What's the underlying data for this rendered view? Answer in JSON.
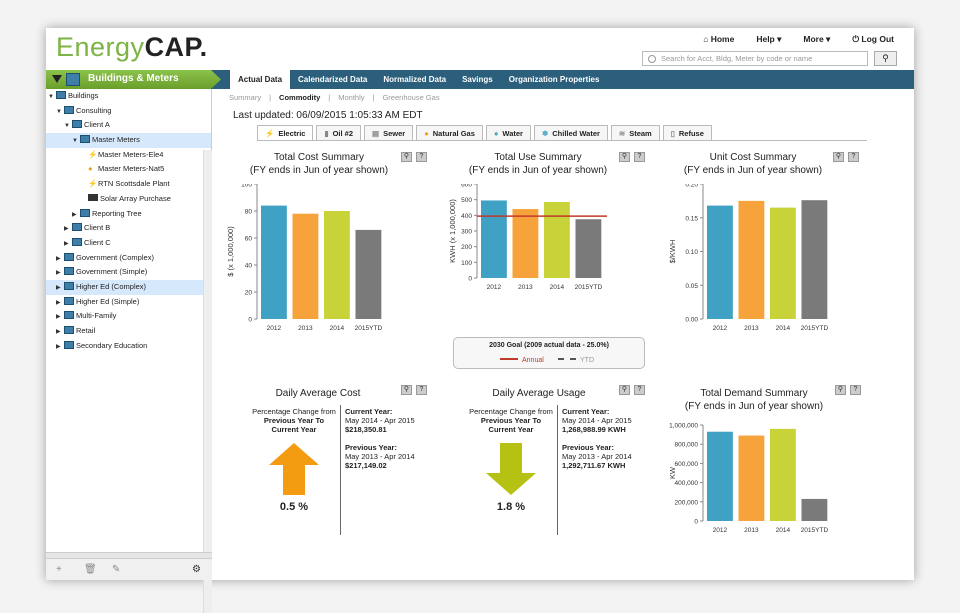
{
  "header": {
    "logo_energy": "Energy",
    "logo_cap": "CAP.",
    "nav": [
      "Home",
      "Help ▾",
      "More ▾",
      "Log Out"
    ],
    "search_placeholder": "Search for Acct, Bldg, Meter by code or name"
  },
  "sidebar": {
    "title": "Buildings & Meters",
    "tree": [
      {
        "label": "Buildings",
        "indent": 0,
        "exp": "▼",
        "icon": "building"
      },
      {
        "label": "Consulting",
        "indent": 1,
        "exp": "▼",
        "icon": "building"
      },
      {
        "label": "Client A",
        "indent": 2,
        "exp": "▼",
        "icon": "building"
      },
      {
        "label": "Master Meters",
        "indent": 3,
        "exp": "▼",
        "icon": "building",
        "selected": true
      },
      {
        "label": "Master Meters-Ele4",
        "indent": 4,
        "exp": "",
        "icon": "bolt"
      },
      {
        "label": "Master Meters-Nat5",
        "indent": 4,
        "exp": "",
        "icon": "drop"
      },
      {
        "label": "RTN Scottsdale Plant",
        "indent": 4,
        "exp": "",
        "icon": "bolt"
      },
      {
        "label": "Solar Array Purchase",
        "indent": 4,
        "exp": "",
        "icon": "solar"
      },
      {
        "label": "Reporting Tree",
        "indent": 3,
        "exp": "▶",
        "icon": "building"
      },
      {
        "label": "Client B",
        "indent": 2,
        "exp": "▶",
        "icon": "building"
      },
      {
        "label": "Client C",
        "indent": 2,
        "exp": "▶",
        "icon": "building"
      },
      {
        "label": "Government (Complex)",
        "indent": 1,
        "exp": "▶",
        "icon": "building"
      },
      {
        "label": "Government (Simple)",
        "indent": 1,
        "exp": "▶",
        "icon": "building"
      },
      {
        "label": "Higher Ed (Complex)",
        "indent": 1,
        "exp": "▶",
        "icon": "building",
        "highlight": true
      },
      {
        "label": "Higher Ed (Simple)",
        "indent": 1,
        "exp": "▶",
        "icon": "building"
      },
      {
        "label": "Multi-Family",
        "indent": 1,
        "exp": "▶",
        "icon": "building"
      },
      {
        "label": "Retail",
        "indent": 1,
        "exp": "▶",
        "icon": "building"
      },
      {
        "label": "Secondary Education",
        "indent": 1,
        "exp": "▶",
        "icon": "building"
      }
    ]
  },
  "main_tabs": [
    "Actual Data",
    "Calendarized Data",
    "Normalized Data",
    "Savings",
    "Organization Properties"
  ],
  "sub_tabs": [
    "Summary",
    "Commodity",
    "Monthly",
    "Greenhouse Gas"
  ],
  "last_updated": "Last updated:   06/09/2015 1:05:33 AM EDT",
  "commodity_tabs": [
    "Electric",
    "Oil #2",
    "Sewer",
    "Natural Gas",
    "Water",
    "Chilled Water",
    "Steam",
    "Refuse"
  ],
  "colors": {
    "c2012": "#3fa1c4",
    "c2013": "#f5a33a",
    "c2014": "#c8d339",
    "cytd": "#7a7a7a",
    "annual": "#c0392b",
    "brand_green": "#7cb342",
    "bar_blue": "#2b5f7c"
  },
  "panels": {
    "cost": {
      "title": "Total Cost Summary",
      "subtitle": "(FY ends in Jun of year shown)"
    },
    "use": {
      "title": "Total Use Summary",
      "subtitle": "(FY ends in Jun of year shown)"
    },
    "unit": {
      "title": "Unit Cost Summary",
      "subtitle": "(FY ends in Jun of year shown)"
    },
    "dcost": {
      "title": "Daily Average Cost"
    },
    "dusage": {
      "title": "Daily Average Usage"
    },
    "demand": {
      "title": "Total Demand Summary",
      "subtitle": "(FY ends in Jun of year shown)"
    }
  },
  "goal": {
    "title": "2030 Goal  (2009 actual data - 25.0%)",
    "annual": "Annual",
    "ytd": "YTD"
  },
  "daily_cost": {
    "pc1": "Percentage Change from",
    "pc2": "Previous Year To",
    "pc3": "Current Year",
    "cur_label": "Current Year:",
    "cur_range": "May 2014 - Apr 2015",
    "cur_val": "$218,350.81",
    "prev_label": "Previous Year:",
    "prev_range": "May 2013 - Apr 2014",
    "prev_val": "$217,149.02",
    "pct": "0.5 %",
    "direction": "up"
  },
  "daily_usage": {
    "pc1": "Percentage Change from",
    "pc2": "Previous Year To",
    "pc3": "Current Year",
    "cur_label": "Current Year:",
    "cur_range": "May 2014 - Apr 2015",
    "cur_val": "1,268,988.99 KWH",
    "prev_label": "Previous Year:",
    "prev_range": "May 2013 - Apr 2014",
    "prev_val": "1,292,711.67 KWH",
    "pct": "1.8 %",
    "direction": "down"
  },
  "chart_data": [
    {
      "type": "bar",
      "title": "Total Cost Summary",
      "categories": [
        "2012",
        "2013",
        "2014",
        "2015YTD"
      ],
      "values": [
        84,
        78,
        80,
        66
      ],
      "ylabel": "$ (x 1,000,000)",
      "ylim": [
        0,
        100
      ],
      "ticks": [
        0,
        20,
        40,
        60,
        80,
        100
      ],
      "tick_labels": [
        "0",
        "20",
        "40",
        "60",
        "80",
        "100"
      ]
    },
    {
      "type": "bar",
      "title": "Total Use Summary",
      "categories": [
        "2012",
        "2013",
        "2014",
        "2015YTD"
      ],
      "values": [
        495,
        440,
        485,
        375
      ],
      "ylabel": "KWH (x 1,000,000)",
      "ylim": [
        0,
        600
      ],
      "ticks": [
        0,
        100,
        200,
        300,
        400,
        500,
        600
      ],
      "tick_labels": [
        "0",
        "100",
        "200",
        "300",
        "400",
        "500",
        "600"
      ],
      "goal_annual": 395
    },
    {
      "type": "bar",
      "title": "Unit Cost Summary",
      "categories": [
        "2012",
        "2013",
        "2014",
        "2015YTD"
      ],
      "values": [
        0.168,
        0.175,
        0.165,
        0.176
      ],
      "ylabel": "$/KWH",
      "ylim": [
        0,
        0.2
      ],
      "ticks": [
        0,
        0.05,
        0.1,
        0.15,
        0.2
      ],
      "tick_labels": [
        "0.00",
        "0.05",
        "0.10",
        "0.15",
        "0.20"
      ]
    },
    {
      "type": "bar",
      "title": "Total Demand Summary",
      "categories": [
        "2012",
        "2013",
        "2014",
        "2015YTD"
      ],
      "values": [
        930000,
        890000,
        960000,
        230000
      ],
      "ylabel": "KW",
      "ylim": [
        0,
        1000000
      ],
      "ticks": [
        0,
        200000,
        400000,
        600000,
        800000,
        1000000
      ],
      "tick_labels": [
        "0",
        "200,000",
        "400,000",
        "600,000",
        "800,000",
        "1,000,000"
      ]
    }
  ]
}
